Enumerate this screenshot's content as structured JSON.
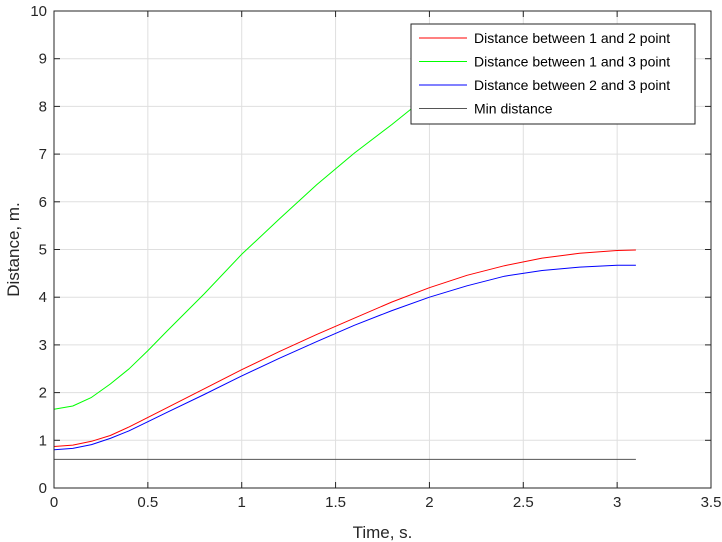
{
  "chart_data": {
    "type": "line",
    "title": "",
    "xlabel": "Time, s.",
    "ylabel": "Distance, m.",
    "xlim": [
      0,
      3.5
    ],
    "ylim": [
      0,
      10
    ],
    "xticks": [
      "0",
      "0.5",
      "1",
      "1.5",
      "2",
      "2.5",
      "3",
      "3.5"
    ],
    "yticks": [
      "0",
      "1",
      "2",
      "3",
      "4",
      "5",
      "6",
      "7",
      "8",
      "9",
      "10"
    ],
    "grid": true,
    "legend_position": "top-right",
    "series": [
      {
        "name": "Distance between 1 and 2 point",
        "color": "#ff0000",
        "x": [
          0,
          0.1,
          0.2,
          0.3,
          0.4,
          0.5,
          0.6,
          0.8,
          1.0,
          1.2,
          1.4,
          1.6,
          1.8,
          2.0,
          2.2,
          2.4,
          2.6,
          2.8,
          3.0,
          3.1
        ],
        "y": [
          0.87,
          0.9,
          0.98,
          1.1,
          1.28,
          1.48,
          1.68,
          2.08,
          2.48,
          2.86,
          3.22,
          3.56,
          3.9,
          4.2,
          4.46,
          4.66,
          4.82,
          4.92,
          4.98,
          4.99
        ]
      },
      {
        "name": "Distance between 1 and 3 point",
        "color": "#00ff00",
        "x": [
          0,
          0.1,
          0.2,
          0.3,
          0.4,
          0.5,
          0.6,
          0.8,
          1.0,
          1.2,
          1.4,
          1.6,
          1.8,
          1.92,
          2.0
        ],
        "y": [
          1.65,
          1.72,
          1.9,
          2.18,
          2.5,
          2.88,
          3.28,
          4.07,
          4.9,
          5.64,
          6.36,
          7.02,
          7.62,
          8.0,
          8.2
        ]
      },
      {
        "name": "Distance between 2 and 3 point",
        "color": "#0000ff",
        "x": [
          0,
          0.1,
          0.2,
          0.3,
          0.4,
          0.5,
          0.6,
          0.8,
          1.0,
          1.2,
          1.4,
          1.6,
          1.8,
          2.0,
          2.2,
          2.4,
          2.6,
          2.8,
          3.0,
          3.1
        ],
        "y": [
          0.8,
          0.83,
          0.91,
          1.04,
          1.2,
          1.39,
          1.58,
          1.96,
          2.35,
          2.72,
          3.07,
          3.41,
          3.72,
          4.0,
          4.24,
          4.44,
          4.56,
          4.63,
          4.67,
          4.67
        ]
      },
      {
        "name": "Min distance",
        "color": "#555555",
        "x": [
          0,
          3.1
        ],
        "y": [
          0.6,
          0.6
        ]
      }
    ]
  }
}
